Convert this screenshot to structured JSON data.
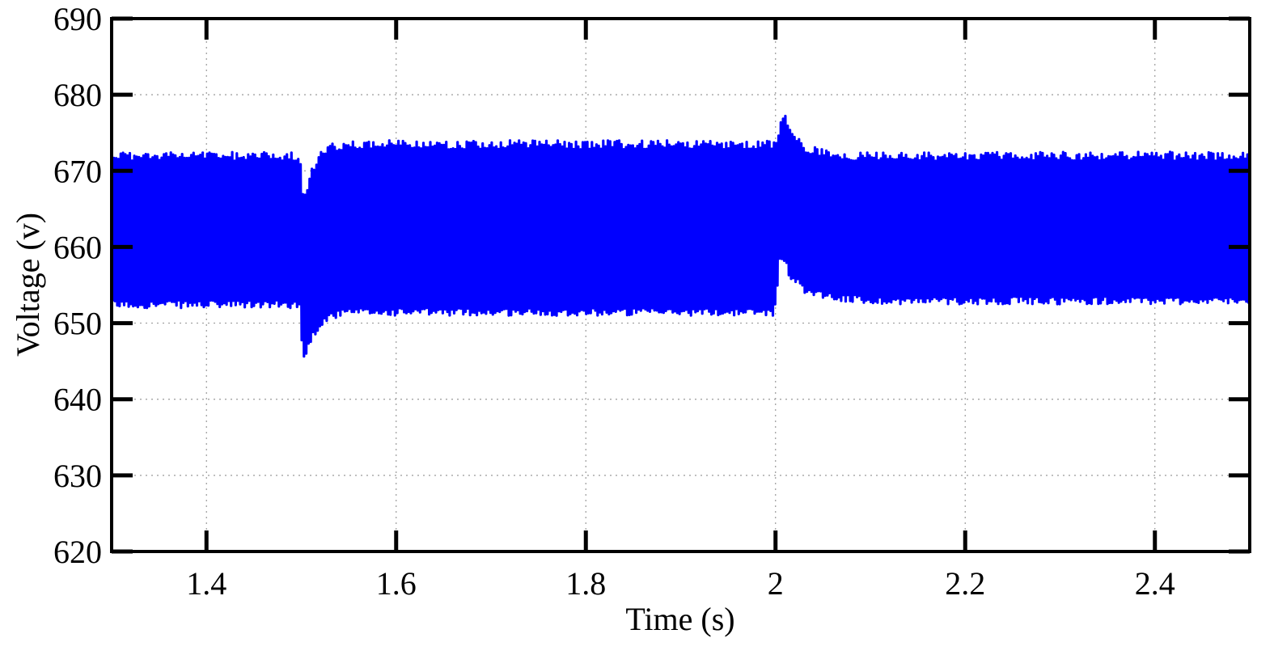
{
  "chart_data": {
    "type": "line",
    "title": "",
    "xlabel": "Time (s)",
    "ylabel": "Voltage (v)",
    "xlim": [
      1.3,
      2.5
    ],
    "ylim": [
      620,
      690
    ],
    "xticks": [
      1.4,
      1.6,
      1.8,
      2.0,
      2.2,
      2.4
    ],
    "xtick_labels": [
      "1.4",
      "1.6",
      "1.8",
      "2",
      "2.2",
      "2.4"
    ],
    "yticks": [
      620,
      630,
      640,
      650,
      660,
      670,
      680,
      690
    ],
    "ytick_labels": [
      "620",
      "630",
      "640",
      "650",
      "660",
      "670",
      "680",
      "690"
    ],
    "grid": true,
    "line_color": "#0000ff",
    "series": [
      {
        "name": "",
        "ripple_envelope": {
          "t": [
            1.3,
            1.499,
            1.501,
            1.505,
            1.51,
            1.52,
            1.53,
            1.55,
            1.6,
            1.8,
            1.999,
            2.004,
            2.007,
            2.01,
            2.015,
            2.03,
            2.06,
            2.1,
            2.3,
            2.5
          ],
          "upper": [
            672.5,
            672.5,
            667.0,
            667.5,
            670.0,
            672.5,
            673.5,
            674.0,
            674.0,
            674.0,
            674.0,
            675.5,
            677.5,
            678.0,
            676.0,
            673.5,
            672.5,
            672.5,
            672.5,
            672.5
          ],
          "lower": [
            652.0,
            652.0,
            645.0,
            645.5,
            647.5,
            649.5,
            650.5,
            651.0,
            651.0,
            651.0,
            651.0,
            657.5,
            658.0,
            657.5,
            656.0,
            654.0,
            653.0,
            652.5,
            652.5,
            652.5
          ]
        }
      }
    ]
  }
}
